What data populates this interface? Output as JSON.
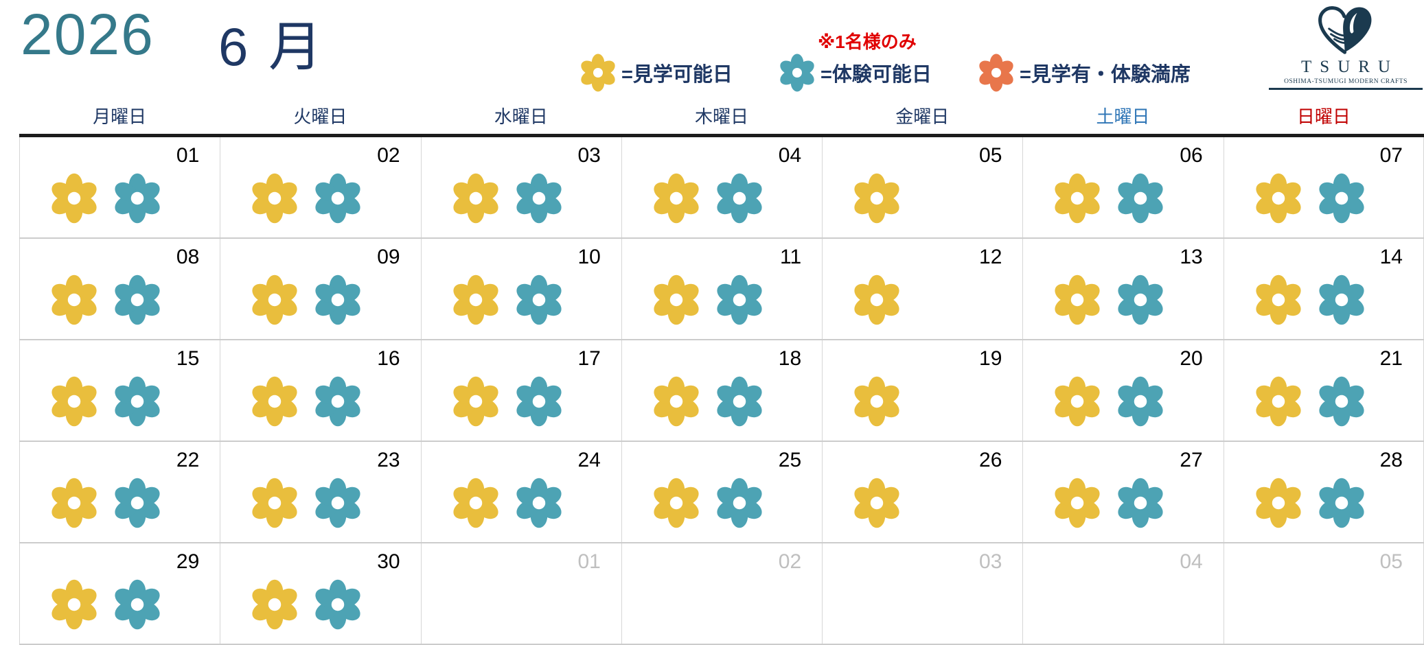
{
  "title": {
    "year": "2026",
    "month": "6 月"
  },
  "legend": {
    "items": [
      {
        "flower": "yellow",
        "note": "",
        "label": "=見学可能日"
      },
      {
        "flower": "teal",
        "note": "※1名様のみ",
        "label": "=体験可能日"
      },
      {
        "flower": "orange",
        "note": "",
        "label": "=見学有・体験満席"
      }
    ]
  },
  "logo": {
    "title": "TSURU",
    "subtitle": "OSHIMA-TSUMUGI MODERN CRAFTS"
  },
  "weekday_header": [
    {
      "label": "月曜日",
      "type": "weekday"
    },
    {
      "label": "火曜日",
      "type": "weekday"
    },
    {
      "label": "水曜日",
      "type": "weekday"
    },
    {
      "label": "木曜日",
      "type": "weekday"
    },
    {
      "label": "金曜日",
      "type": "weekday"
    },
    {
      "label": "土曜日",
      "type": "saturday"
    },
    {
      "label": "日曜日",
      "type": "sunday"
    }
  ],
  "weeks": [
    [
      {
        "day": "01",
        "flowers": [
          "yellow",
          "teal"
        ],
        "other_month": false
      },
      {
        "day": "02",
        "flowers": [
          "yellow",
          "teal"
        ],
        "other_month": false
      },
      {
        "day": "03",
        "flowers": [
          "yellow",
          "teal"
        ],
        "other_month": false
      },
      {
        "day": "04",
        "flowers": [
          "yellow",
          "teal"
        ],
        "other_month": false
      },
      {
        "day": "05",
        "flowers": [
          "yellow"
        ],
        "other_month": false
      },
      {
        "day": "06",
        "flowers": [
          "yellow",
          "teal"
        ],
        "other_month": false
      },
      {
        "day": "07",
        "flowers": [
          "yellow",
          "teal"
        ],
        "other_month": false
      }
    ],
    [
      {
        "day": "08",
        "flowers": [
          "yellow",
          "teal"
        ],
        "other_month": false
      },
      {
        "day": "09",
        "flowers": [
          "yellow",
          "teal"
        ],
        "other_month": false
      },
      {
        "day": "10",
        "flowers": [
          "yellow",
          "teal"
        ],
        "other_month": false
      },
      {
        "day": "11",
        "flowers": [
          "yellow",
          "teal"
        ],
        "other_month": false
      },
      {
        "day": "12",
        "flowers": [
          "yellow"
        ],
        "other_month": false
      },
      {
        "day": "13",
        "flowers": [
          "yellow",
          "teal"
        ],
        "other_month": false
      },
      {
        "day": "14",
        "flowers": [
          "yellow",
          "teal"
        ],
        "other_month": false
      }
    ],
    [
      {
        "day": "15",
        "flowers": [
          "yellow",
          "teal"
        ],
        "other_month": false
      },
      {
        "day": "16",
        "flowers": [
          "yellow",
          "teal"
        ],
        "other_month": false
      },
      {
        "day": "17",
        "flowers": [
          "yellow",
          "teal"
        ],
        "other_month": false
      },
      {
        "day": "18",
        "flowers": [
          "yellow",
          "teal"
        ],
        "other_month": false
      },
      {
        "day": "19",
        "flowers": [
          "yellow"
        ],
        "other_month": false
      },
      {
        "day": "20",
        "flowers": [
          "yellow",
          "teal"
        ],
        "other_month": false
      },
      {
        "day": "21",
        "flowers": [
          "yellow",
          "teal"
        ],
        "other_month": false
      }
    ],
    [
      {
        "day": "22",
        "flowers": [
          "yellow",
          "teal"
        ],
        "other_month": false
      },
      {
        "day": "23",
        "flowers": [
          "yellow",
          "teal"
        ],
        "other_month": false
      },
      {
        "day": "24",
        "flowers": [
          "yellow",
          "teal"
        ],
        "other_month": false
      },
      {
        "day": "25",
        "flowers": [
          "yellow",
          "teal"
        ],
        "other_month": false
      },
      {
        "day": "26",
        "flowers": [
          "yellow"
        ],
        "other_month": false
      },
      {
        "day": "27",
        "flowers": [
          "yellow",
          "teal"
        ],
        "other_month": false
      },
      {
        "day": "28",
        "flowers": [
          "yellow",
          "teal"
        ],
        "other_month": false
      }
    ],
    [
      {
        "day": "29",
        "flowers": [
          "yellow",
          "teal"
        ],
        "other_month": false
      },
      {
        "day": "30",
        "flowers": [
          "yellow",
          "teal"
        ],
        "other_month": false
      },
      {
        "day": "01",
        "flowers": [],
        "other_month": true
      },
      {
        "day": "02",
        "flowers": [],
        "other_month": true
      },
      {
        "day": "03",
        "flowers": [],
        "other_month": true
      },
      {
        "day": "04",
        "flowers": [],
        "other_month": true
      },
      {
        "day": "05",
        "flowers": [],
        "other_month": true
      }
    ]
  ],
  "colors": {
    "year_text": "#35798A",
    "navy_text": "#1F3864",
    "red_note": "#E00000",
    "saturday": "#2E75B6",
    "sunday": "#C00000",
    "flower_yellow": "#E9BE3D",
    "flower_teal": "#4DA3B4",
    "flower_orange": "#E8764B",
    "day_number": "#000000",
    "other_month": "#BFBFBF",
    "grid_line": "#D6D6D6",
    "row_line": "#CCCCCC",
    "header_rule": "#1C1C1C",
    "logo_navy": "#1B3A4F"
  }
}
